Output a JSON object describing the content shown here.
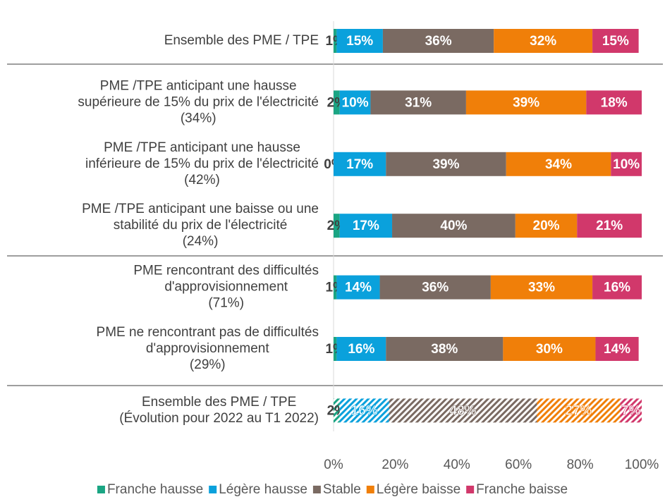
{
  "chart_data": {
    "type": "stacked-bar-horizontal",
    "categories": [
      [
        "Ensemble des PME / TPE"
      ],
      [
        "PME /TPE anticipant une hausse",
        "supérieure de 15% du prix de l'électricité",
        "(34%)"
      ],
      [
        "PME /TPE anticipant une hausse",
        "inférieure de 15% du prix de l'électricité",
        "(42%)"
      ],
      [
        "PME /TPE anticipant une baisse ou une",
        "stabilité du prix de l'électricité",
        "(24%)"
      ],
      [
        "PME rencontrant des difficultés",
        "d'approvisionnement",
        "(71%)"
      ],
      [
        "PME ne rencontrant pas de difficultés",
        "d'approvisionnement",
        "(29%)"
      ],
      [
        "Ensemble des PME / TPE",
        "(Évolution pour 2022 au T1 2022)"
      ]
    ],
    "hatched": [
      false,
      false,
      false,
      false,
      false,
      false,
      true
    ],
    "series": [
      {
        "name": "Franche hausse",
        "color": "#1aa583",
        "values": [
          1,
          2,
          0,
          2,
          1,
          1,
          2
        ],
        "value_labels": [
          "1%",
          "2%",
          "0%",
          "2%",
          "1%",
          "1%",
          "2%"
        ]
      },
      {
        "name": "Légère hausse",
        "color": "#0aa1dc",
        "values": [
          15,
          10,
          17,
          17,
          14,
          16,
          16
        ],
        "value_labels": [
          "15%",
          "10%",
          "17%",
          "17%",
          "14%",
          "16%",
          "16%"
        ]
      },
      {
        "name": "Stable",
        "color": "#7a6a62",
        "values": [
          36,
          31,
          39,
          40,
          36,
          38,
          48
        ],
        "value_labels": [
          "36%",
          "31%",
          "39%",
          "40%",
          "36%",
          "38%",
          "48%"
        ]
      },
      {
        "name": "Légère baisse",
        "color": "#f07f09",
        "values": [
          32,
          39,
          34,
          20,
          33,
          30,
          27
        ],
        "value_labels": [
          "32%",
          "39%",
          "34%",
          "20%",
          "33%",
          "30%",
          "27%"
        ]
      },
      {
        "name": "Franche baisse",
        "color": "#d1386b",
        "values": [
          15,
          18,
          10,
          21,
          16,
          14,
          7
        ],
        "value_labels": [
          "15%",
          "18%",
          "10%",
          "21%",
          "16%",
          "14%",
          "7%"
        ]
      }
    ],
    "xlim": [
      0,
      100
    ],
    "xticks": [
      {
        "value": 0,
        "label": "0%"
      },
      {
        "value": 20,
        "label": "20%"
      },
      {
        "value": 40,
        "label": "40%"
      },
      {
        "value": 60,
        "label": "60%"
      },
      {
        "value": 80,
        "label": "80%"
      },
      {
        "value": 100,
        "label": "100%"
      }
    ],
    "legend": "bottom"
  }
}
